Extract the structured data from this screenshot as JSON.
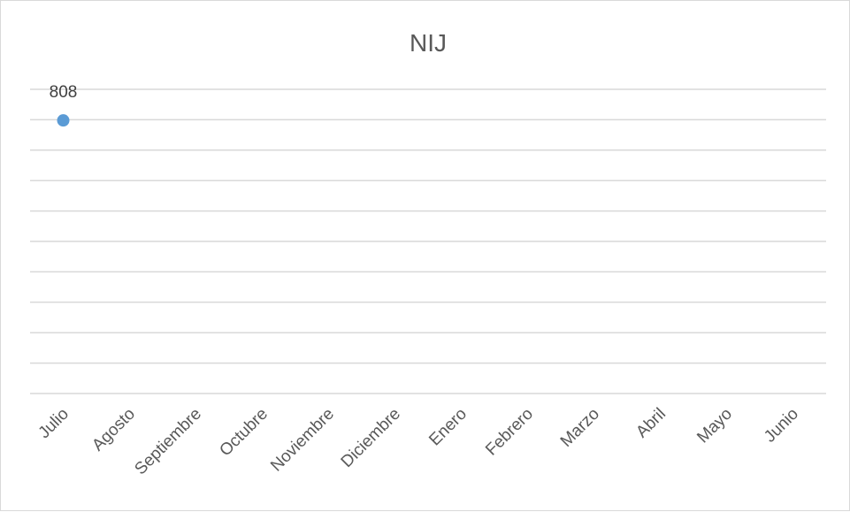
{
  "chart_data": {
    "type": "line",
    "title": "NIJ",
    "xlabel": "",
    "ylabel": "",
    "categories": [
      "Julio",
      "Agosto",
      "Septiembre",
      "Octubre",
      "Noviembre",
      "Diciembre",
      "Enero",
      "Febrero",
      "Marzo",
      "Abril",
      "Mayo",
      "Junio"
    ],
    "series": [
      {
        "values": [
          808,
          null,
          null,
          null,
          null,
          null,
          null,
          null,
          null,
          null,
          null,
          null
        ],
        "color": "#5b9bd5",
        "data_labels": [
          "808",
          "",
          "",
          "",
          "",
          "",
          "",
          "",
          "",
          "",
          "",
          ""
        ]
      }
    ],
    "ylim": [
      0,
      900
    ],
    "gridlines": 10,
    "grid": true,
    "legend": "none",
    "y_axis_labels_visible": false
  }
}
